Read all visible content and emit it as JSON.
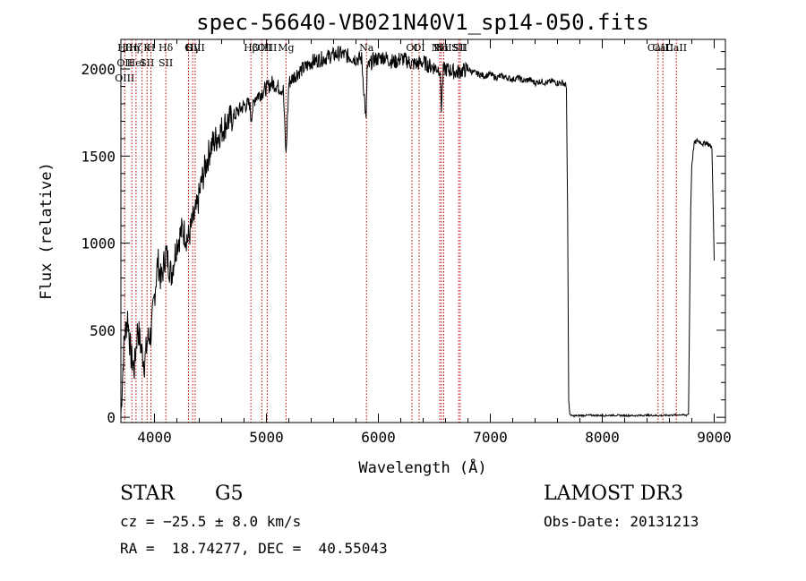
{
  "chart_data": {
    "type": "line",
    "title": "spec-56640-VB021N40V1_sp14-050.fits",
    "xlabel": "Wavelength (Å)",
    "ylabel": "Flux (relative)",
    "xlim": [
      3700,
      9100
    ],
    "ylim": [
      -30,
      2170
    ],
    "xticks": [
      4000,
      5000,
      6000,
      7000,
      8000,
      9000
    ],
    "yticks": [
      0,
      500,
      1000,
      1500,
      2000
    ],
    "series": [
      {
        "name": "flux",
        "x": [
          3700,
          3730,
          3760,
          3790,
          3820,
          3850,
          3880,
          3910,
          3940,
          3970,
          4000,
          4030,
          4060,
          4100,
          4150,
          4200,
          4250,
          4300,
          4340,
          4380,
          4420,
          4460,
          4500,
          4550,
          4600,
          4650,
          4700,
          4750,
          4800,
          4850,
          4861,
          4900,
          4950,
          5000,
          5050,
          5100,
          5150,
          5175,
          5200,
          5250,
          5300,
          5350,
          5400,
          5450,
          5500,
          5550,
          5600,
          5650,
          5700,
          5750,
          5800,
          5850,
          5890,
          5900,
          5950,
          6000,
          6050,
          6100,
          6150,
          6200,
          6250,
          6300,
          6350,
          6400,
          6450,
          6500,
          6550,
          6563,
          6580,
          6600,
          6650,
          6700,
          6750,
          6800,
          6850,
          6900,
          6950,
          7000,
          7050,
          7100,
          7150,
          7200,
          7250,
          7300,
          7350,
          7400,
          7450,
          7500,
          7550,
          7600,
          7650,
          7680,
          7690,
          7700,
          7710,
          7720,
          7740,
          7800,
          7900,
          8000,
          8100,
          8200,
          8300,
          8400,
          8500,
          8600,
          8700,
          8750,
          8770,
          8780,
          8790,
          8800,
          8820,
          8850,
          8880,
          8900,
          8930,
          8960,
          8980,
          9000
        ],
        "values": [
          20,
          450,
          580,
          350,
          280,
          520,
          400,
          310,
          450,
          480,
          700,
          900,
          780,
          950,
          820,
          1000,
          1080,
          1020,
          1120,
          1200,
          1350,
          1450,
          1550,
          1600,
          1650,
          1700,
          1720,
          1760,
          1790,
          1800,
          1720,
          1840,
          1860,
          1890,
          1920,
          1900,
          1880,
          1500,
          1920,
          1960,
          1990,
          2010,
          2040,
          2050,
          2060,
          2070,
          2080,
          2090,
          2080,
          2070,
          2060,
          2060,
          1700,
          2000,
          2050,
          2060,
          2070,
          2050,
          2040,
          2060,
          2050,
          2030,
          2030,
          2040,
          2020,
          2010,
          2000,
          1780,
          1990,
          2000,
          1990,
          1980,
          1990,
          2000,
          1980,
          1970,
          1960,
          1970,
          1950,
          1960,
          1950,
          1940,
          1950,
          1930,
          1940,
          1920,
          1930,
          1920,
          1930,
          1920,
          1920,
          1900,
          1200,
          100,
          20,
          10,
          8,
          10,
          12,
          10,
          12,
          10,
          10,
          12,
          10,
          12,
          15,
          12,
          20,
          600,
          1200,
          1450,
          1570,
          1590,
          1580,
          1570,
          1580,
          1560,
          1550,
          900
        ]
      }
    ],
    "lines": [
      {
        "wl": 3734,
        "labels": [
          "Hθ",
          "OII",
          "OIII"
        ]
      },
      {
        "wl": 3798,
        "labels": [
          "Hη"
        ]
      },
      {
        "wl": 3835,
        "labels": [
          "Hζ",
          "HeI"
        ]
      },
      {
        "wl": 3889,
        "labels": [
          ""
        ]
      },
      {
        "wl": 3934,
        "labels": [
          "K",
          "SII"
        ]
      },
      {
        "wl": 3968,
        "labels": [
          "H"
        ]
      },
      {
        "wl": 4101,
        "labels": [
          "Hδ",
          "SII"
        ]
      },
      {
        "wl": 4304,
        "labels": [
          "G"
        ]
      },
      {
        "wl": 4341,
        "labels": [
          "Hγ"
        ]
      },
      {
        "wl": 4363,
        "labels": [
          "OIII"
        ]
      },
      {
        "wl": 4861,
        "labels": [
          "Hβ"
        ]
      },
      {
        "wl": 4959,
        "labels": [
          "OIII"
        ]
      },
      {
        "wl": 5007,
        "labels": [
          "OIII"
        ]
      },
      {
        "wl": 5175,
        "labels": [
          "Mg"
        ]
      },
      {
        "wl": 5894,
        "labels": [
          "Na"
        ]
      },
      {
        "wl": 6300,
        "labels": [
          "OI"
        ]
      },
      {
        "wl": 6364,
        "labels": [
          "OI"
        ]
      },
      {
        "wl": 6548,
        "labels": [
          "NII"
        ]
      },
      {
        "wl": 6563,
        "labels": [
          "Hα"
        ]
      },
      {
        "wl": 6584,
        "labels": [
          "NII"
        ]
      },
      {
        "wl": 6717,
        "labels": [
          "SII"
        ]
      },
      {
        "wl": 6731,
        "labels": [
          "SII"
        ]
      },
      {
        "wl": 8498,
        "labels": [
          "CaII"
        ]
      },
      {
        "wl": 8542,
        "labels": [
          "CaII"
        ]
      },
      {
        "wl": 8662,
        "labels": [
          "CaII"
        ]
      }
    ]
  },
  "footer": {
    "class_label": "STAR",
    "subclass": "G5",
    "survey": "LAMOST DR3",
    "cz": "cz = −25.5 ± 8.0 km/s",
    "obs_date": "Obs-Date: 20131213",
    "radec": "RA =  18.74277, DEC =  40.55043"
  },
  "colors": {
    "line_marker": "#c00000",
    "spectrum": "#000000"
  }
}
